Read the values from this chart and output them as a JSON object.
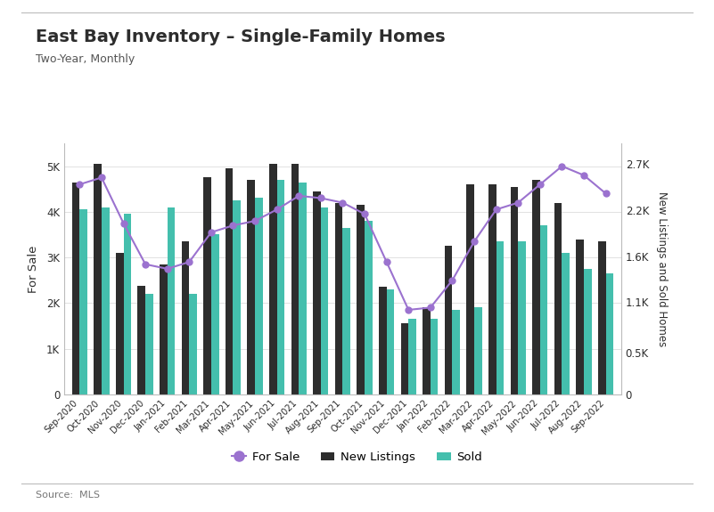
{
  "title": "East Bay Inventory – Single-Family Homes",
  "subtitle": "Two-Year, Monthly",
  "source": "Source:  MLS",
  "ylabel_left": "For Sale",
  "ylabel_right": "New Listings and Sold Homes",
  "categories": [
    "Sep-2020",
    "Oct-2020",
    "Nov-2020",
    "Dec-2020",
    "Jan-2021",
    "Feb-2021",
    "Mar-2021",
    "Apr-2021",
    "May-2021",
    "Jun-2021",
    "Jul-2021",
    "Aug-2021",
    "Sep-2021",
    "Oct-2021",
    "Nov-2021",
    "Dec-2021",
    "Jan-2022",
    "Feb-2022",
    "Mar-2022",
    "Apr-2022",
    "May-2022",
    "Jun-2022",
    "Jul-2022",
    "Aug-2022",
    "Sep-2022"
  ],
  "new_listings": [
    4650,
    5050,
    3100,
    2380,
    2850,
    3350,
    4750,
    4950,
    4700,
    5050,
    5050,
    4450,
    4200,
    4150,
    2350,
    1550,
    1900,
    3250,
    4600,
    4600,
    4550,
    4700,
    4200,
    3400,
    3350
  ],
  "sold": [
    4050,
    4100,
    3950,
    2200,
    4100,
    2200,
    3500,
    4250,
    4300,
    4700,
    4650,
    4100,
    3650,
    3800,
    2300,
    1650,
    1650,
    1850,
    1900,
    3350,
    3350,
    3700,
    3100,
    2750,
    2650
  ],
  "for_sale": [
    4600,
    4750,
    3750,
    2850,
    2750,
    2900,
    3550,
    3700,
    3800,
    4050,
    4350,
    4300,
    4200,
    3950,
    2900,
    1850,
    1900,
    2500,
    3350,
    4050,
    4200,
    4600,
    5000,
    4800,
    4400
  ],
  "bar_color_dark": "#2d2d2d",
  "bar_color_teal": "#44bfad",
  "line_color": "#9b72cf",
  "background_color": "#ffffff",
  "grid_color": "#dddddd",
  "spine_color": "#bbbbbb",
  "title_color": "#2d2d2d",
  "subtitle_color": "#555555",
  "source_color": "#777777",
  "ylim_left": [
    0,
    5500
  ],
  "ylim_right": [
    0,
    3000
  ],
  "yticks_left": [
    0,
    1000,
    2000,
    3000,
    4000,
    5000
  ],
  "ytick_labels_left": [
    "0",
    "1K",
    "2K",
    "3K",
    "4K",
    "5K"
  ],
  "yticks_right_vals": [
    0,
    500,
    1100,
    1650,
    2200,
    2750
  ],
  "ytick_labels_right": [
    "0",
    "0.5K",
    "1.1K",
    "1.6K",
    "2.2K",
    "2.7K"
  ],
  "figsize": [
    8.01,
    5.75
  ],
  "dpi": 100
}
